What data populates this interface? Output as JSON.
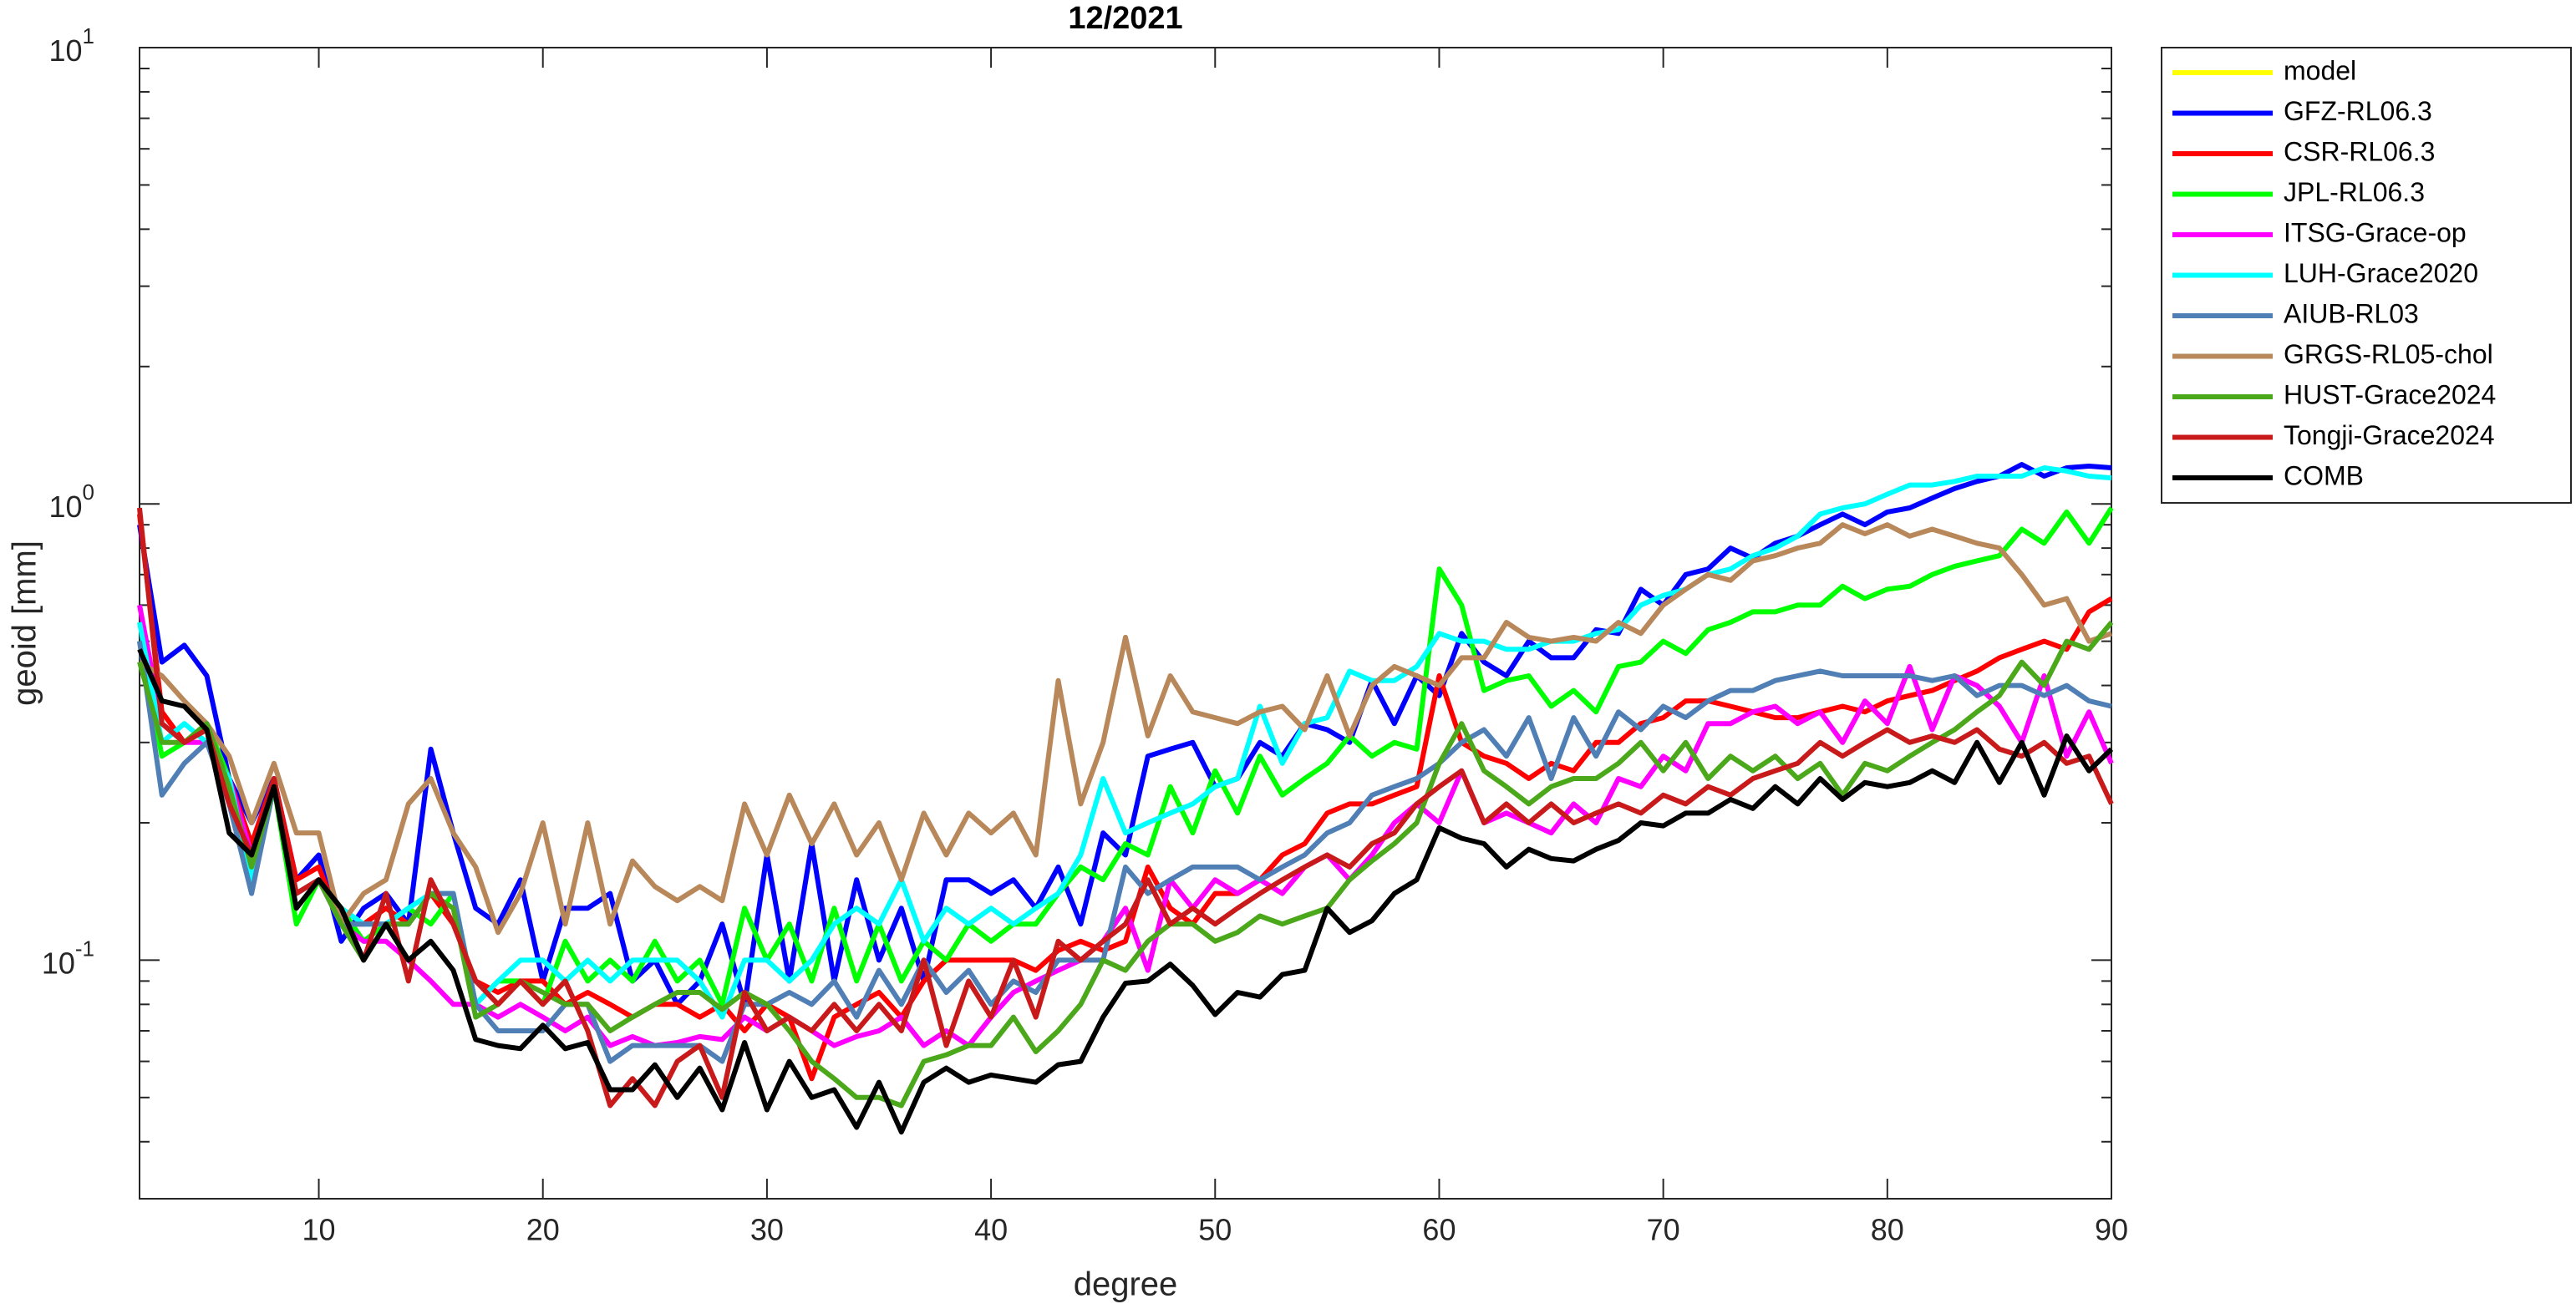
{
  "chart_data": {
    "type": "line",
    "title": "12/2021",
    "x_label": "degree",
    "y_label": "geoid [mm]",
    "yscale": "log",
    "xlim": [
      2,
      90
    ],
    "ylim": [
      0.03,
      10
    ],
    "xticks": [
      10,
      20,
      30,
      40,
      50,
      60,
      70,
      80,
      90
    ],
    "yticks": [
      {
        "value": 0.1,
        "label": "10",
        "exponent": "-1"
      },
      {
        "value": 1,
        "label": "10",
        "exponent": "0"
      },
      {
        "value": 10,
        "label": "10",
        "exponent": "1"
      }
    ],
    "yminorticks": [
      0.03,
      0.04,
      0.05,
      0.06,
      0.07,
      0.08,
      0.09,
      0.2,
      0.3,
      0.4,
      0.5,
      0.6,
      0.7,
      0.8,
      0.9,
      2,
      3,
      4,
      5,
      6,
      7,
      8,
      9
    ],
    "legend": "outside-top-right",
    "x": [
      2,
      3,
      4,
      5,
      6,
      7,
      8,
      9,
      10,
      11,
      12,
      13,
      14,
      15,
      16,
      17,
      18,
      19,
      20,
      21,
      22,
      23,
      24,
      25,
      26,
      27,
      28,
      29,
      30,
      31,
      32,
      33,
      34,
      35,
      36,
      37,
      38,
      39,
      40,
      41,
      42,
      43,
      44,
      45,
      46,
      47,
      48,
      49,
      50,
      51,
      52,
      53,
      54,
      55,
      56,
      57,
      58,
      59,
      60,
      61,
      62,
      63,
      64,
      65,
      66,
      67,
      68,
      69,
      70,
      71,
      72,
      73,
      74,
      75,
      76,
      77,
      78,
      79,
      80,
      81,
      82,
      83,
      84,
      85,
      86,
      87,
      88,
      89,
      90
    ],
    "series": [
      {
        "name": "model",
        "color": "#ffff00",
        "values": [
          null,
          null,
          null,
          null,
          null,
          null,
          null,
          null,
          null,
          null,
          null,
          null,
          null,
          null,
          null,
          null,
          null,
          null,
          null,
          null,
          null,
          null,
          null,
          null,
          null,
          null,
          null,
          null,
          null,
          null,
          null,
          null,
          null,
          null,
          null,
          null,
          null,
          null,
          null,
          null,
          null,
          null,
          null,
          null,
          null,
          null,
          null,
          null,
          null,
          null,
          null,
          null,
          null,
          null,
          null,
          null,
          null,
          null,
          null,
          null,
          null,
          null,
          null,
          null,
          null,
          null,
          null,
          null,
          null,
          null,
          null,
          null,
          null,
          null,
          null,
          null,
          null,
          null,
          null,
          null,
          null,
          null,
          null,
          null,
          null,
          null,
          null,
          null,
          null
        ]
      },
      {
        "name": "GFZ-RL06.3",
        "color": "#0000ff",
        "values": [
          0.9,
          0.45,
          0.49,
          0.42,
          0.25,
          0.2,
          0.25,
          0.15,
          0.17,
          0.11,
          0.13,
          0.14,
          0.12,
          0.29,
          0.19,
          0.13,
          0.12,
          0.15,
          0.09,
          0.13,
          0.13,
          0.14,
          0.09,
          0.1,
          0.08,
          0.09,
          0.12,
          0.08,
          0.17,
          0.09,
          0.18,
          0.09,
          0.15,
          0.1,
          0.13,
          0.09,
          0.15,
          0.15,
          0.14,
          0.15,
          0.13,
          0.16,
          0.12,
          0.19,
          0.17,
          0.28,
          0.29,
          0.3,
          0.24,
          0.25,
          0.3,
          0.28,
          0.33,
          0.32,
          0.3,
          0.41,
          0.33,
          0.42,
          0.38,
          0.52,
          0.45,
          0.42,
          0.5,
          0.46,
          0.46,
          0.53,
          0.52,
          0.65,
          0.6,
          0.7,
          0.72,
          0.8,
          0.76,
          0.82,
          0.85,
          0.9,
          0.95,
          0.9,
          0.96,
          0.98,
          1.03,
          1.08,
          1.12,
          1.15,
          1.22,
          1.15,
          1.2,
          1.21,
          1.2
        ]
      },
      {
        "name": "CSR-RL06.3",
        "color": "#ff0000",
        "values": [
          0.95,
          0.35,
          0.3,
          0.33,
          0.25,
          0.18,
          0.25,
          0.15,
          0.16,
          0.12,
          0.12,
          0.13,
          0.12,
          0.14,
          0.12,
          0.09,
          0.085,
          0.09,
          0.09,
          0.08,
          0.085,
          0.08,
          0.075,
          0.08,
          0.08,
          0.075,
          0.08,
          0.07,
          0.08,
          0.075,
          0.055,
          0.075,
          0.08,
          0.085,
          0.075,
          0.09,
          0.1,
          0.1,
          0.1,
          0.1,
          0.095,
          0.105,
          0.11,
          0.105,
          0.11,
          0.16,
          0.13,
          0.12,
          0.14,
          0.14,
          0.15,
          0.17,
          0.18,
          0.21,
          0.22,
          0.22,
          0.23,
          0.24,
          0.42,
          0.3,
          0.28,
          0.27,
          0.25,
          0.27,
          0.26,
          0.3,
          0.3,
          0.33,
          0.34,
          0.37,
          0.37,
          0.36,
          0.35,
          0.34,
          0.34,
          0.35,
          0.36,
          0.35,
          0.37,
          0.38,
          0.39,
          0.41,
          0.43,
          0.46,
          0.48,
          0.5,
          0.48,
          0.58,
          0.62
        ]
      },
      {
        "name": "JPL-RL06.3",
        "color": "#00ff00",
        "values": [
          0.5,
          0.28,
          0.3,
          0.33,
          0.25,
          0.15,
          0.24,
          0.12,
          0.15,
          0.13,
          0.11,
          0.12,
          0.13,
          0.12,
          0.14,
          0.08,
          0.09,
          0.09,
          0.08,
          0.11,
          0.09,
          0.1,
          0.09,
          0.11,
          0.09,
          0.1,
          0.08,
          0.13,
          0.1,
          0.12,
          0.09,
          0.13,
          0.09,
          0.12,
          0.09,
          0.11,
          0.1,
          0.12,
          0.11,
          0.12,
          0.12,
          0.14,
          0.16,
          0.15,
          0.18,
          0.17,
          0.24,
          0.19,
          0.26,
          0.21,
          0.28,
          0.23,
          0.25,
          0.27,
          0.31,
          0.28,
          0.3,
          0.29,
          0.72,
          0.6,
          0.39,
          0.41,
          0.42,
          0.36,
          0.39,
          0.35,
          0.44,
          0.45,
          0.5,
          0.47,
          0.53,
          0.55,
          0.58,
          0.58,
          0.6,
          0.6,
          0.66,
          0.62,
          0.65,
          0.66,
          0.7,
          0.73,
          0.75,
          0.77,
          0.88,
          0.82,
          0.96,
          0.82,
          0.98
        ]
      },
      {
        "name": "ITSG-Grace-op",
        "color": "#ff00ff",
        "values": [
          0.6,
          0.33,
          0.3,
          0.3,
          0.25,
          0.17,
          0.24,
          0.14,
          0.15,
          0.12,
          0.11,
          0.11,
          0.1,
          0.09,
          0.08,
          0.08,
          0.075,
          0.08,
          0.075,
          0.07,
          0.075,
          0.065,
          0.068,
          0.065,
          0.066,
          0.068,
          0.067,
          0.075,
          0.07,
          0.075,
          0.07,
          0.065,
          0.068,
          0.07,
          0.075,
          0.065,
          0.07,
          0.065,
          0.075,
          0.085,
          0.09,
          0.095,
          0.1,
          0.11,
          0.13,
          0.095,
          0.15,
          0.13,
          0.15,
          0.14,
          0.15,
          0.14,
          0.16,
          0.17,
          0.15,
          0.17,
          0.2,
          0.22,
          0.2,
          0.26,
          0.2,
          0.21,
          0.2,
          0.19,
          0.22,
          0.2,
          0.25,
          0.24,
          0.28,
          0.26,
          0.33,
          0.33,
          0.35,
          0.36,
          0.33,
          0.35,
          0.3,
          0.37,
          0.33,
          0.44,
          0.32,
          0.42,
          0.4,
          0.36,
          0.3,
          0.42,
          0.28,
          0.35,
          0.27
        ]
      },
      {
        "name": "LUH-Grace2020",
        "color": "#00ffff",
        "values": [
          0.55,
          0.3,
          0.33,
          0.3,
          0.25,
          0.15,
          0.24,
          0.14,
          0.15,
          0.13,
          0.12,
          0.12,
          0.13,
          0.14,
          0.14,
          0.08,
          0.09,
          0.1,
          0.1,
          0.09,
          0.1,
          0.09,
          0.1,
          0.1,
          0.1,
          0.09,
          0.075,
          0.1,
          0.1,
          0.09,
          0.1,
          0.12,
          0.13,
          0.12,
          0.15,
          0.11,
          0.13,
          0.12,
          0.13,
          0.12,
          0.13,
          0.14,
          0.17,
          0.25,
          0.19,
          0.2,
          0.21,
          0.22,
          0.24,
          0.25,
          0.36,
          0.27,
          0.33,
          0.34,
          0.43,
          0.41,
          0.41,
          0.44,
          0.52,
          0.5,
          0.5,
          0.48,
          0.48,
          0.5,
          0.5,
          0.52,
          0.53,
          0.6,
          0.63,
          0.65,
          0.7,
          0.72,
          0.77,
          0.8,
          0.85,
          0.95,
          0.98,
          1.0,
          1.05,
          1.1,
          1.1,
          1.12,
          1.15,
          1.15,
          1.15,
          1.2,
          1.18,
          1.15,
          1.14
        ]
      },
      {
        "name": "AIUB-RL03",
        "color": "#4f7fb5",
        "values": [
          0.5,
          0.23,
          0.27,
          0.3,
          0.22,
          0.14,
          0.24,
          0.14,
          0.15,
          0.12,
          0.12,
          0.12,
          0.12,
          0.14,
          0.14,
          0.08,
          0.07,
          0.07,
          0.07,
          0.08,
          0.08,
          0.06,
          0.065,
          0.065,
          0.065,
          0.065,
          0.06,
          0.08,
          0.08,
          0.085,
          0.08,
          0.09,
          0.075,
          0.095,
          0.08,
          0.1,
          0.085,
          0.095,
          0.08,
          0.09,
          0.085,
          0.1,
          0.1,
          0.1,
          0.16,
          0.14,
          0.15,
          0.16,
          0.16,
          0.16,
          0.15,
          0.16,
          0.17,
          0.19,
          0.2,
          0.23,
          0.24,
          0.25,
          0.27,
          0.3,
          0.32,
          0.28,
          0.34,
          0.25,
          0.34,
          0.28,
          0.35,
          0.32,
          0.36,
          0.34,
          0.37,
          0.39,
          0.39,
          0.41,
          0.42,
          0.43,
          0.42,
          0.42,
          0.42,
          0.42,
          0.41,
          0.42,
          0.38,
          0.4,
          0.4,
          0.38,
          0.4,
          0.37,
          0.36
        ]
      },
      {
        "name": "GRGS-RL05-chol",
        "color": "#b8885a",
        "values": [
          0.45,
          0.42,
          0.37,
          0.33,
          0.28,
          0.2,
          0.27,
          0.19,
          0.19,
          0.12,
          0.14,
          0.15,
          0.22,
          0.25,
          0.19,
          0.16,
          0.115,
          0.14,
          0.2,
          0.12,
          0.2,
          0.12,
          0.165,
          0.145,
          0.135,
          0.145,
          0.135,
          0.22,
          0.17,
          0.23,
          0.18,
          0.22,
          0.17,
          0.2,
          0.15,
          0.21,
          0.17,
          0.21,
          0.19,
          0.21,
          0.17,
          0.41,
          0.22,
          0.3,
          0.51,
          0.31,
          0.42,
          0.35,
          0.34,
          0.33,
          0.35,
          0.36,
          0.32,
          0.42,
          0.31,
          0.4,
          0.44,
          0.42,
          0.4,
          0.46,
          0.46,
          0.55,
          0.51,
          0.5,
          0.51,
          0.5,
          0.55,
          0.52,
          0.6,
          0.65,
          0.7,
          0.68,
          0.75,
          0.77,
          0.8,
          0.82,
          0.9,
          0.86,
          0.9,
          0.85,
          0.88,
          0.85,
          0.82,
          0.8,
          0.7,
          0.6,
          0.62,
          0.5,
          0.52
        ]
      },
      {
        "name": "HUST-Grace2024",
        "color": "#4aa81a",
        "values": [
          0.45,
          0.3,
          0.3,
          0.33,
          0.24,
          0.16,
          0.24,
          0.13,
          0.15,
          0.12,
          0.1,
          0.12,
          0.12,
          0.14,
          0.13,
          0.075,
          0.08,
          0.09,
          0.085,
          0.08,
          0.08,
          0.07,
          0.075,
          0.08,
          0.085,
          0.085,
          0.078,
          0.085,
          0.08,
          0.07,
          0.06,
          0.055,
          0.05,
          0.05,
          0.048,
          0.06,
          0.062,
          0.065,
          0.065,
          0.075,
          0.063,
          0.07,
          0.08,
          0.1,
          0.095,
          0.11,
          0.12,
          0.12,
          0.11,
          0.115,
          0.125,
          0.12,
          0.125,
          0.13,
          0.15,
          0.165,
          0.18,
          0.2,
          0.27,
          0.33,
          0.26,
          0.24,
          0.22,
          0.24,
          0.25,
          0.25,
          0.27,
          0.3,
          0.26,
          0.3,
          0.25,
          0.28,
          0.26,
          0.28,
          0.25,
          0.27,
          0.23,
          0.27,
          0.26,
          0.28,
          0.3,
          0.32,
          0.35,
          0.38,
          0.45,
          0.4,
          0.5,
          0.48,
          0.55
        ]
      },
      {
        "name": "Tongji-Grace2024",
        "color": "#c81a1a",
        "values": [
          0.98,
          0.33,
          0.3,
          0.32,
          0.22,
          0.17,
          0.25,
          0.14,
          0.15,
          0.13,
          0.1,
          0.14,
          0.09,
          0.15,
          0.12,
          0.09,
          0.08,
          0.09,
          0.08,
          0.09,
          0.07,
          0.048,
          0.055,
          0.048,
          0.06,
          0.065,
          0.05,
          0.085,
          0.07,
          0.075,
          0.07,
          0.08,
          0.07,
          0.08,
          0.07,
          0.1,
          0.065,
          0.09,
          0.075,
          0.1,
          0.075,
          0.11,
          0.1,
          0.11,
          0.12,
          0.15,
          0.12,
          0.13,
          0.12,
          0.13,
          0.14,
          0.15,
          0.16,
          0.17,
          0.16,
          0.18,
          0.19,
          0.22,
          0.24,
          0.26,
          0.2,
          0.22,
          0.2,
          0.22,
          0.2,
          0.21,
          0.22,
          0.21,
          0.23,
          0.22,
          0.24,
          0.23,
          0.25,
          0.26,
          0.27,
          0.3,
          0.28,
          0.3,
          0.32,
          0.3,
          0.31,
          0.3,
          0.32,
          0.29,
          0.28,
          0.3,
          0.27,
          0.28,
          0.22
        ]
      },
      {
        "name": "COMB",
        "color": "#000000",
        "values": [
          0.48,
          0.37,
          0.36,
          0.32,
          0.19,
          0.17,
          0.24,
          0.13,
          0.15,
          0.13,
          0.1,
          0.12,
          0.1,
          0.11,
          0.095,
          0.067,
          0.065,
          0.064,
          0.072,
          0.064,
          0.066,
          0.052,
          0.052,
          0.059,
          0.05,
          0.058,
          0.047,
          0.066,
          0.047,
          0.06,
          0.05,
          0.052,
          0.043,
          0.054,
          0.042,
          0.054,
          0.058,
          0.054,
          0.056,
          0.055,
          0.054,
          0.059,
          0.06,
          0.075,
          0.089,
          0.09,
          0.098,
          0.088,
          0.076,
          0.085,
          0.083,
          0.093,
          0.095,
          0.13,
          0.115,
          0.122,
          0.14,
          0.15,
          0.195,
          0.185,
          0.18,
          0.16,
          0.175,
          0.167,
          0.165,
          0.175,
          0.183,
          0.2,
          0.197,
          0.21,
          0.21,
          0.225,
          0.215,
          0.24,
          0.22,
          0.25,
          0.225,
          0.245,
          0.24,
          0.245,
          0.26,
          0.245,
          0.3,
          0.245,
          0.3,
          0.23,
          0.31,
          0.26,
          0.29
        ]
      }
    ]
  }
}
